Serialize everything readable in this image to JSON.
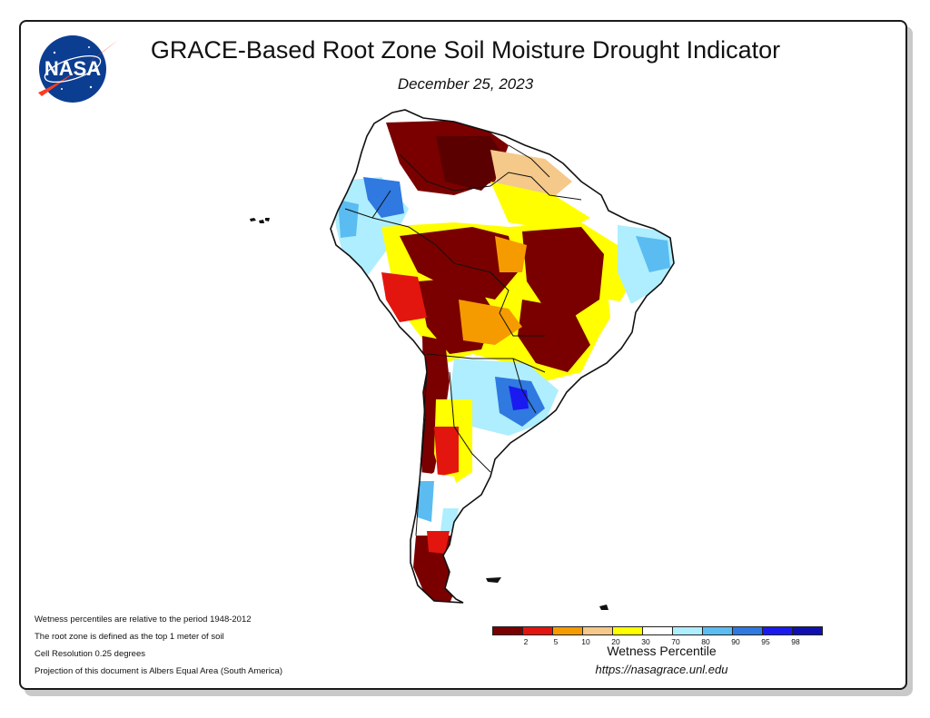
{
  "header": {
    "title": "GRACE-Based Root Zone Soil Moisture Drought Indicator",
    "date": "December 25, 2023",
    "logo_text": "NASA"
  },
  "map": {
    "region": "South America",
    "palette": {
      "lt2": "#7a0000",
      "p2_5": "#e3150f",
      "p5_10": "#f59b00",
      "p10_20": "#f5c98a",
      "p20_30": "#ffff00",
      "p30_70": "#ffffff",
      "p70_80": "#aeeefe",
      "p80_90": "#5bbcf1",
      "p90_95": "#2f79e0",
      "p95_98": "#1a1af0",
      "gt98": "#1010b0"
    }
  },
  "notes": [
    "Wetness percentiles are relative to the period 1948-2012",
    "The root zone is defined as the top 1 meter of soil",
    "Cell Resolution 0.25 degrees",
    "Projection of this document is Albers Equal Area (South America)"
  ],
  "legend": {
    "title": "Wetness Percentile",
    "colors": [
      "#7a0000",
      "#e3150f",
      "#f59b00",
      "#f5c98a",
      "#ffff00",
      "#ffffff",
      "#aeeefe",
      "#5bbcf1",
      "#2f79e0",
      "#1a1af0",
      "#1010b0"
    ],
    "ticks": [
      "2",
      "5",
      "10",
      "20",
      "30",
      "70",
      "80",
      "90",
      "95",
      "98"
    ]
  },
  "footer": {
    "url": "https://nasagrace.unl.edu"
  }
}
